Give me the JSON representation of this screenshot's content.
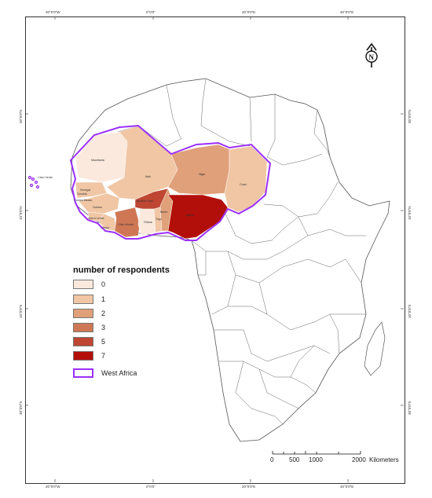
{
  "coords": {
    "top": [
      "20°0'0\"W",
      "0°0'0\"",
      "20°0'0\"E",
      "40°0'0\"E"
    ],
    "bottom": [
      "20°0'0\"W",
      "0°0'0\"",
      "20°0'0\"E",
      "40°0'0\"E"
    ],
    "left": [
      "30°0'0\"N",
      "10°0'0\"N",
      "10°0'0\"S",
      "30°0'0\"S"
    ],
    "right": [
      "30°0'0\"N",
      "10°0'0\"N",
      "10°0'0\"S",
      "30°0'0\"S"
    ]
  },
  "north_arrow": "N",
  "legend": {
    "title": "number of respondents",
    "classes": [
      {
        "label": "0",
        "color": "#fbe9dd"
      },
      {
        "label": "1",
        "color": "#f0c6a4"
      },
      {
        "label": "2",
        "color": "#e0a07a"
      },
      {
        "label": "3",
        "color": "#cf7754"
      },
      {
        "label": "5",
        "color": "#be4633"
      },
      {
        "label": "7",
        "color": "#b30f0a"
      }
    ],
    "region_label": "West Africa",
    "region_color": "#9b30ff"
  },
  "countries": [
    {
      "name": "Mauritania",
      "respondents": 0
    },
    {
      "name": "Mali",
      "respondents": 1
    },
    {
      "name": "Niger",
      "respondents": 2
    },
    {
      "name": "Chad",
      "respondents": 1
    },
    {
      "name": "Senegal",
      "respondents": 1
    },
    {
      "name": "Gambia",
      "respondents": 1
    },
    {
      "name": "Guinea",
      "respondents": 1
    },
    {
      "name": "Guinea Bissau",
      "respondents": 1
    },
    {
      "name": "Sierra Leone",
      "respondents": 1
    },
    {
      "name": "Liberia",
      "respondents": 1
    },
    {
      "name": "Côte d'Ivoire",
      "respondents": 3
    },
    {
      "name": "Ghana",
      "respondents": 0
    },
    {
      "name": "Burkina Faso",
      "respondents": 5
    },
    {
      "name": "Togo",
      "respondents": 1
    },
    {
      "name": "Benin",
      "respondents": 2
    },
    {
      "name": "Nigeria",
      "respondents": 7
    },
    {
      "name": "Cabo Verde",
      "respondents": 0
    }
  ],
  "scale_bar": {
    "ticks": [
      "0",
      "500",
      "1000",
      "2000"
    ],
    "unit": "Kilometers"
  }
}
